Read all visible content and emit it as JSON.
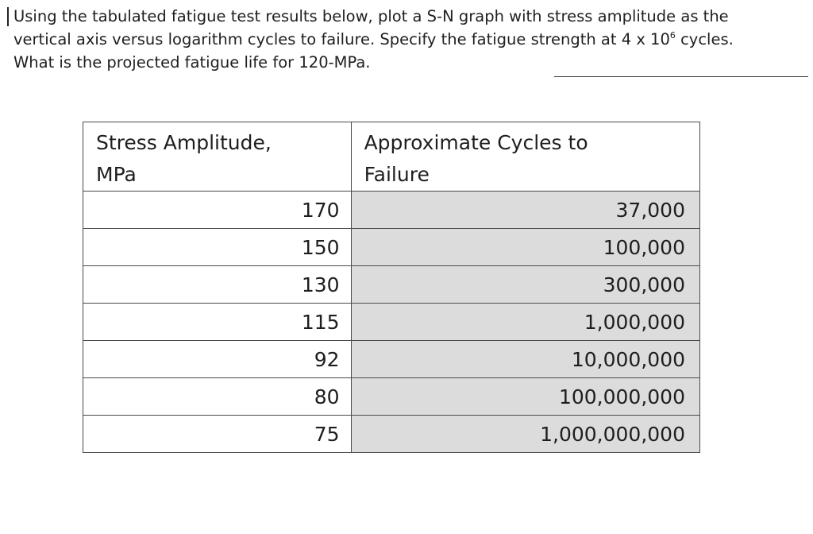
{
  "question": {
    "line1": "Using the tabulated fatigue test results below, plot a S-N graph with stress amplitude as the",
    "line2_before": "vertical axis versus logarithm cycles to failure. Specify the fatigue strength at 4 x 10",
    "line2_sup": "6",
    "line2_after": " cycles.",
    "line3": "What is the projected fatigue life for 120-MPa."
  },
  "table": {
    "header_stress_line1": "Stress Amplitude,",
    "header_stress_line2": "MPa",
    "header_cycles_line1": "Approximate Cycles to",
    "header_cycles_line2": "Failure",
    "rows": [
      {
        "stress": "170",
        "cycles": "37,000"
      },
      {
        "stress": "150",
        "cycles": "100,000"
      },
      {
        "stress": "130",
        "cycles": "300,000"
      },
      {
        "stress": "115",
        "cycles": "1,000,000"
      },
      {
        "stress": "92",
        "cycles": "10,000,000"
      },
      {
        "stress": "80",
        "cycles": "100,000,000"
      },
      {
        "stress": "75",
        "cycles": "1,000,000,000"
      }
    ]
  },
  "colors": {
    "shaded_cell": "#dcdcdc",
    "border": "#4a4a4a",
    "text": "#1e1e1e"
  }
}
